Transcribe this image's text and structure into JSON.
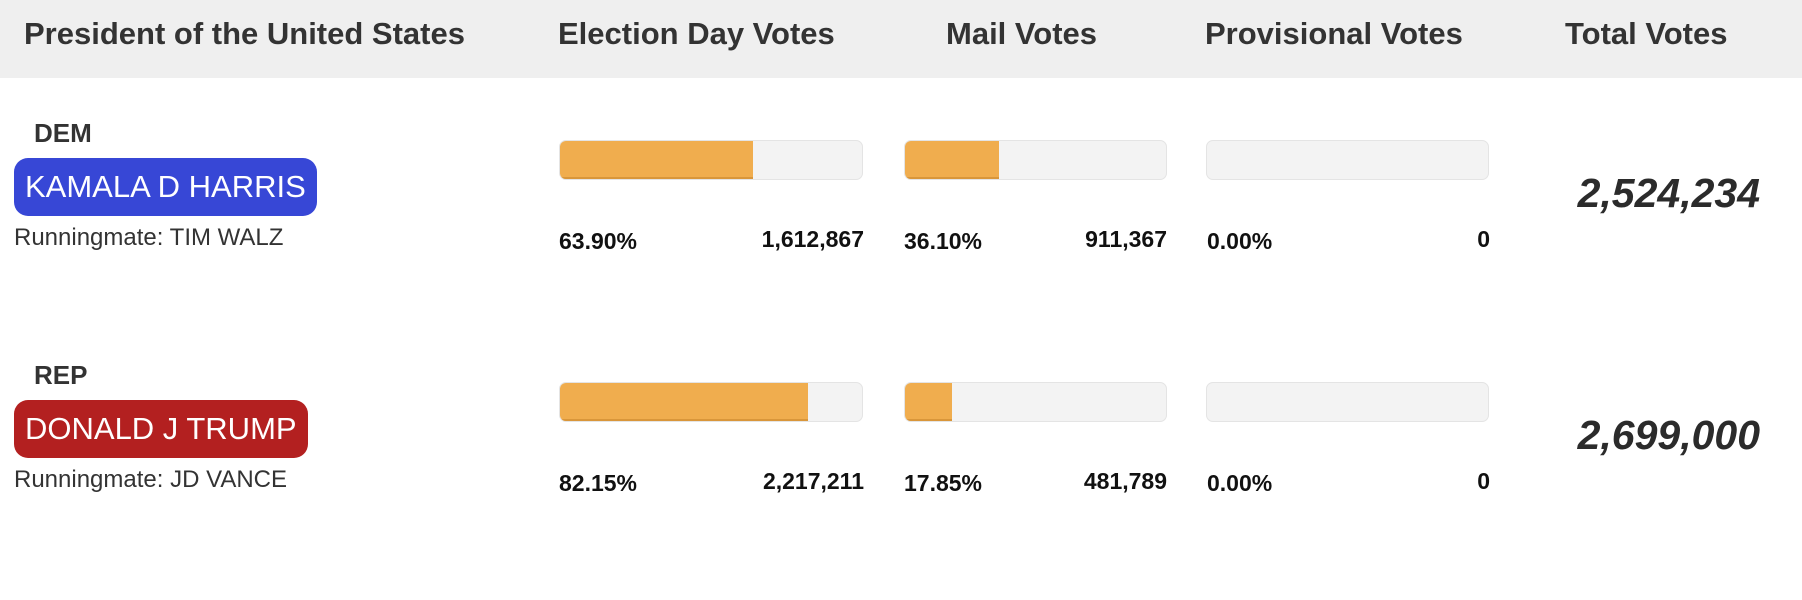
{
  "header": {
    "race": "President of the United States",
    "election_day": "Election Day Votes",
    "mail": "Mail Votes",
    "provisional": "Provisional Votes",
    "total": "Total Votes"
  },
  "colors": {
    "dem_badge": "#3747d6",
    "rep_badge": "#b32020",
    "bar_fill": "#f0ad4e"
  },
  "candidates": [
    {
      "party": "DEM",
      "name": "KAMALA D HARRIS",
      "runningmate": "Runningmate: TIM WALZ",
      "election_day": {
        "pct_label": "63.90%",
        "count": "1,612,867",
        "fraction": 0.639
      },
      "mail": {
        "pct_label": "36.10%",
        "count": "911,367",
        "fraction": 0.361
      },
      "provisional": {
        "pct_label": "0.00%",
        "count": "0",
        "fraction": 0
      },
      "total": "2,524,234"
    },
    {
      "party": "REP",
      "name": "DONALD J TRUMP",
      "runningmate": "Runningmate: JD VANCE",
      "election_day": {
        "pct_label": "82.15%",
        "count": "2,217,211",
        "fraction": 0.8215
      },
      "mail": {
        "pct_label": "17.85%",
        "count": "481,789",
        "fraction": 0.1785
      },
      "provisional": {
        "pct_label": "0.00%",
        "count": "0",
        "fraction": 0
      },
      "total": "2,699,000"
    }
  ]
}
